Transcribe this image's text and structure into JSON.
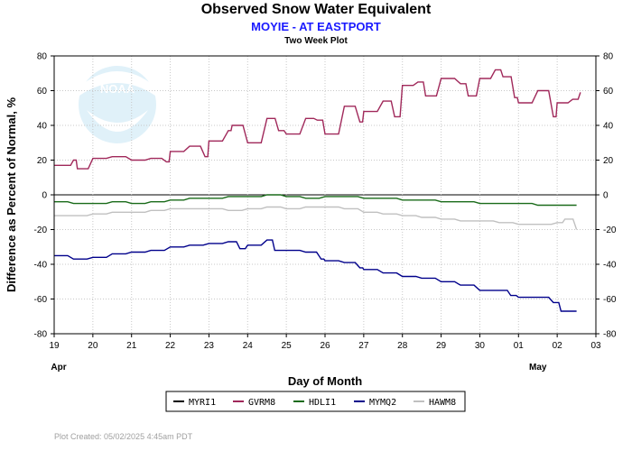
{
  "header": {
    "title": "Observed Snow Water Equivalent",
    "subtitle": "MOYIE - AT EASTPORT",
    "plot_type": "Two Week Plot"
  },
  "footer": {
    "created": "Plot Created: 05/02/2025 4:45am PDT"
  },
  "logo": {
    "text": "NOAA",
    "icon": "noaa-logo-icon"
  },
  "chart_data": {
    "type": "line",
    "title": "Observed Snow Water Equivalent",
    "subtitle": "MOYIE - AT EASTPORT",
    "xlabel": "Day of Month",
    "ylabel": "Difference as Percent of Normal, %",
    "x_ticks": [
      "19",
      "20",
      "21",
      "22",
      "23",
      "24",
      "25",
      "26",
      "27",
      "28",
      "29",
      "30",
      "01",
      "02",
      "03"
    ],
    "month_labels": [
      {
        "label": "Apr",
        "at": 19
      },
      {
        "label": "May",
        "at": 31.5
      }
    ],
    "xlim": [
      19,
      33
    ],
    "ylim": [
      -80,
      80
    ],
    "y_ticks": [
      -80,
      -60,
      -40,
      -20,
      0,
      20,
      40,
      60,
      80
    ],
    "grid": true,
    "legend_position": "bottom",
    "series": [
      {
        "name": "MYRI1",
        "color": "#000000",
        "x": [],
        "y": []
      },
      {
        "name": "GVRM8",
        "color": "#a0285a",
        "x": [
          19.0,
          19.25,
          19.5,
          19.6,
          20.0,
          20.5,
          21.0,
          21.5,
          21.9,
          22.0,
          22.5,
          22.9,
          23.0,
          23.5,
          23.6,
          24.0,
          24.5,
          24.8,
          25.0,
          25.5,
          25.8,
          26.0,
          26.5,
          26.9,
          27.0,
          27.5,
          27.8,
          28.0,
          28.4,
          28.6,
          29.0,
          29.5,
          29.7,
          30.0,
          30.4,
          30.6,
          30.9,
          31.0,
          31.5,
          31.9,
          32.0,
          32.4,
          32.6
        ],
        "y": [
          17,
          17,
          20,
          15,
          21,
          22,
          20,
          21,
          19,
          25,
          28,
          22,
          31,
          37,
          40,
          30,
          44,
          37,
          35,
          44,
          43,
          35,
          51,
          42,
          48,
          54,
          45,
          63,
          65,
          57,
          67,
          64,
          57,
          67,
          72,
          68,
          56,
          53,
          60,
          45,
          53,
          55,
          59
        ]
      },
      {
        "name": "HDLI1",
        "color": "#1a6b1a",
        "x": [
          19.0,
          19.5,
          20.0,
          20.5,
          21.0,
          21.5,
          22.0,
          22.5,
          23.0,
          23.5,
          24.0,
          24.5,
          25.0,
          25.5,
          26.0,
          26.5,
          27.0,
          27.5,
          28.0,
          28.5,
          29.0,
          29.5,
          30.0,
          30.5,
          31.0,
          31.5,
          32.0,
          32.5
        ],
        "y": [
          -4,
          -5,
          -5,
          -4,
          -5,
          -4,
          -3,
          -2,
          -2,
          -1,
          -1,
          0,
          -1,
          -2,
          -1,
          -1,
          -2,
          -2,
          -3,
          -3,
          -4,
          -4,
          -5,
          -5,
          -5,
          -6,
          -6,
          -6
        ]
      },
      {
        "name": "MYMQ2",
        "color": "#00008b",
        "x": [
          19.0,
          19.5,
          20.0,
          20.5,
          21.0,
          21.5,
          22.0,
          22.5,
          23.0,
          23.5,
          23.8,
          24.0,
          24.5,
          24.7,
          25.0,
          25.5,
          25.9,
          26.0,
          26.5,
          26.9,
          27.0,
          27.5,
          28.0,
          28.5,
          29.0,
          29.5,
          30.0,
          30.5,
          30.8,
          31.0,
          31.5,
          31.9,
          32.1,
          32.5
        ],
        "y": [
          -35,
          -37,
          -36,
          -34,
          -33,
          -32,
          -30,
          -29,
          -28,
          -27,
          -31,
          -29,
          -26,
          -32,
          -32,
          -33,
          -37,
          -38,
          -39,
          -42,
          -43,
          -45,
          -47,
          -48,
          -50,
          -52,
          -55,
          -55,
          -58,
          -59,
          -59,
          -62,
          -67,
          -67
        ]
      },
      {
        "name": "HAWM8",
        "color": "#c0c0c0",
        "x": [
          19.0,
          19.5,
          20.0,
          20.5,
          21.0,
          21.5,
          22.0,
          22.5,
          23.0,
          23.5,
          24.0,
          24.5,
          25.0,
          25.5,
          26.0,
          26.5,
          27.0,
          27.5,
          28.0,
          28.5,
          29.0,
          29.5,
          30.0,
          30.5,
          31.0,
          31.5,
          32.0,
          32.2,
          32.5
        ],
        "y": [
          -12,
          -12,
          -11,
          -10,
          -10,
          -9,
          -8,
          -8,
          -8,
          -9,
          -8,
          -7,
          -8,
          -7,
          -7,
          -8,
          -10,
          -11,
          -12,
          -13,
          -14,
          -15,
          -15,
          -16,
          -17,
          -17,
          -16,
          -14,
          -20
        ]
      }
    ]
  }
}
